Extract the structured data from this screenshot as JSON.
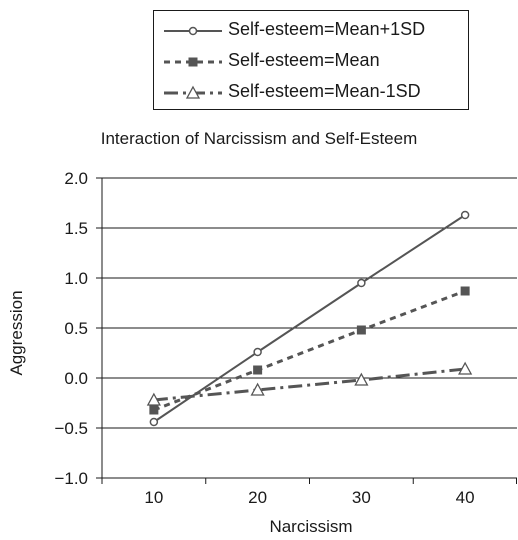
{
  "chart_data": {
    "type": "line",
    "title": "Interaction of Narcissism and Self-Esteem",
    "xlabel": "Narcissism",
    "ylabel": "Aggression",
    "x": [
      10,
      20,
      30,
      40
    ],
    "x_ticks": [
      "10",
      "20",
      "30",
      "40"
    ],
    "ylim": [
      -1.0,
      2.0
    ],
    "y_ticks": [
      "2.0",
      "1.5",
      "1.0",
      "0.5",
      "0.0",
      "−0.5",
      "−1.0"
    ],
    "grid": "horizontal",
    "legend_position": "top",
    "series": [
      {
        "name": "Self-esteem=Mean+1SD",
        "values": [
          -0.44,
          0.26,
          0.95,
          1.63
        ],
        "line": "solid",
        "marker": "circle",
        "color": "#555555"
      },
      {
        "name": "Self-esteem=Mean",
        "values": [
          -0.32,
          0.08,
          0.48,
          0.87
        ],
        "line": "dotted",
        "marker": "square",
        "color": "#555555"
      },
      {
        "name": "Self-esteem=Mean-1SD",
        "values": [
          -0.22,
          -0.12,
          -0.02,
          0.09
        ],
        "line": "dashdot",
        "marker": "triangle",
        "color": "#555555"
      }
    ]
  }
}
